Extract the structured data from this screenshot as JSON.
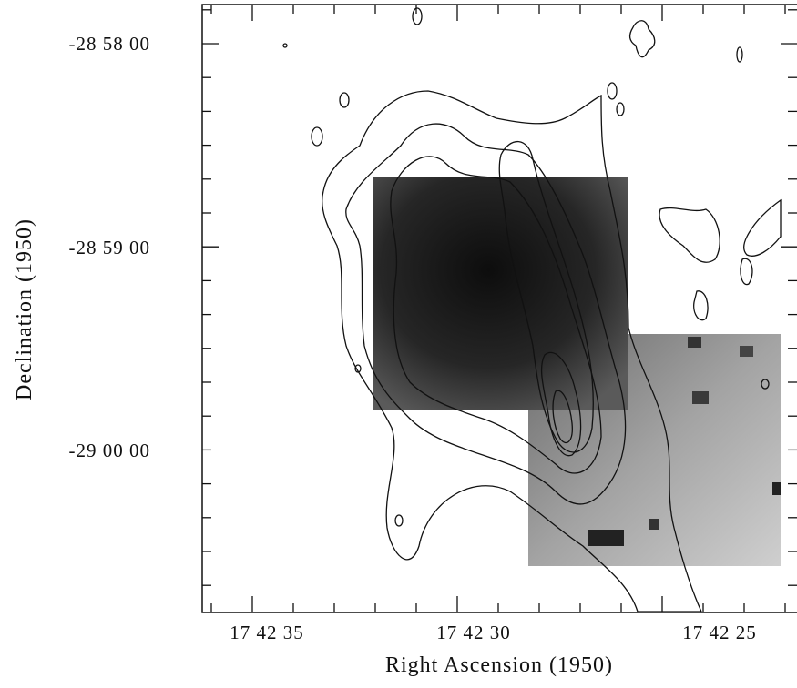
{
  "figure": {
    "x_label": "Right Ascension (1950)",
    "y_label": "Declination (1950)",
    "x_ticks": [
      "17 42 35",
      "17 42 30",
      "17 42 25"
    ],
    "y_ticks": [
      "-28 58 00",
      "-28 59 00",
      "-29 00 00"
    ]
  }
}
